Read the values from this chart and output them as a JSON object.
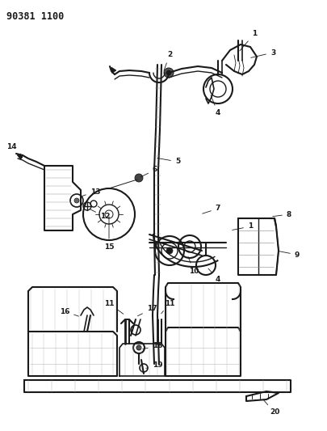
{
  "diagram_id": "90381 1100",
  "bg_color": "#ffffff",
  "line_color": "#1a1a1a",
  "fig_width": 4.05,
  "fig_height": 5.33,
  "dpi": 100,
  "title_text": "90381 1100",
  "title_fontsize": 8.5,
  "title_fontweight": "bold"
}
